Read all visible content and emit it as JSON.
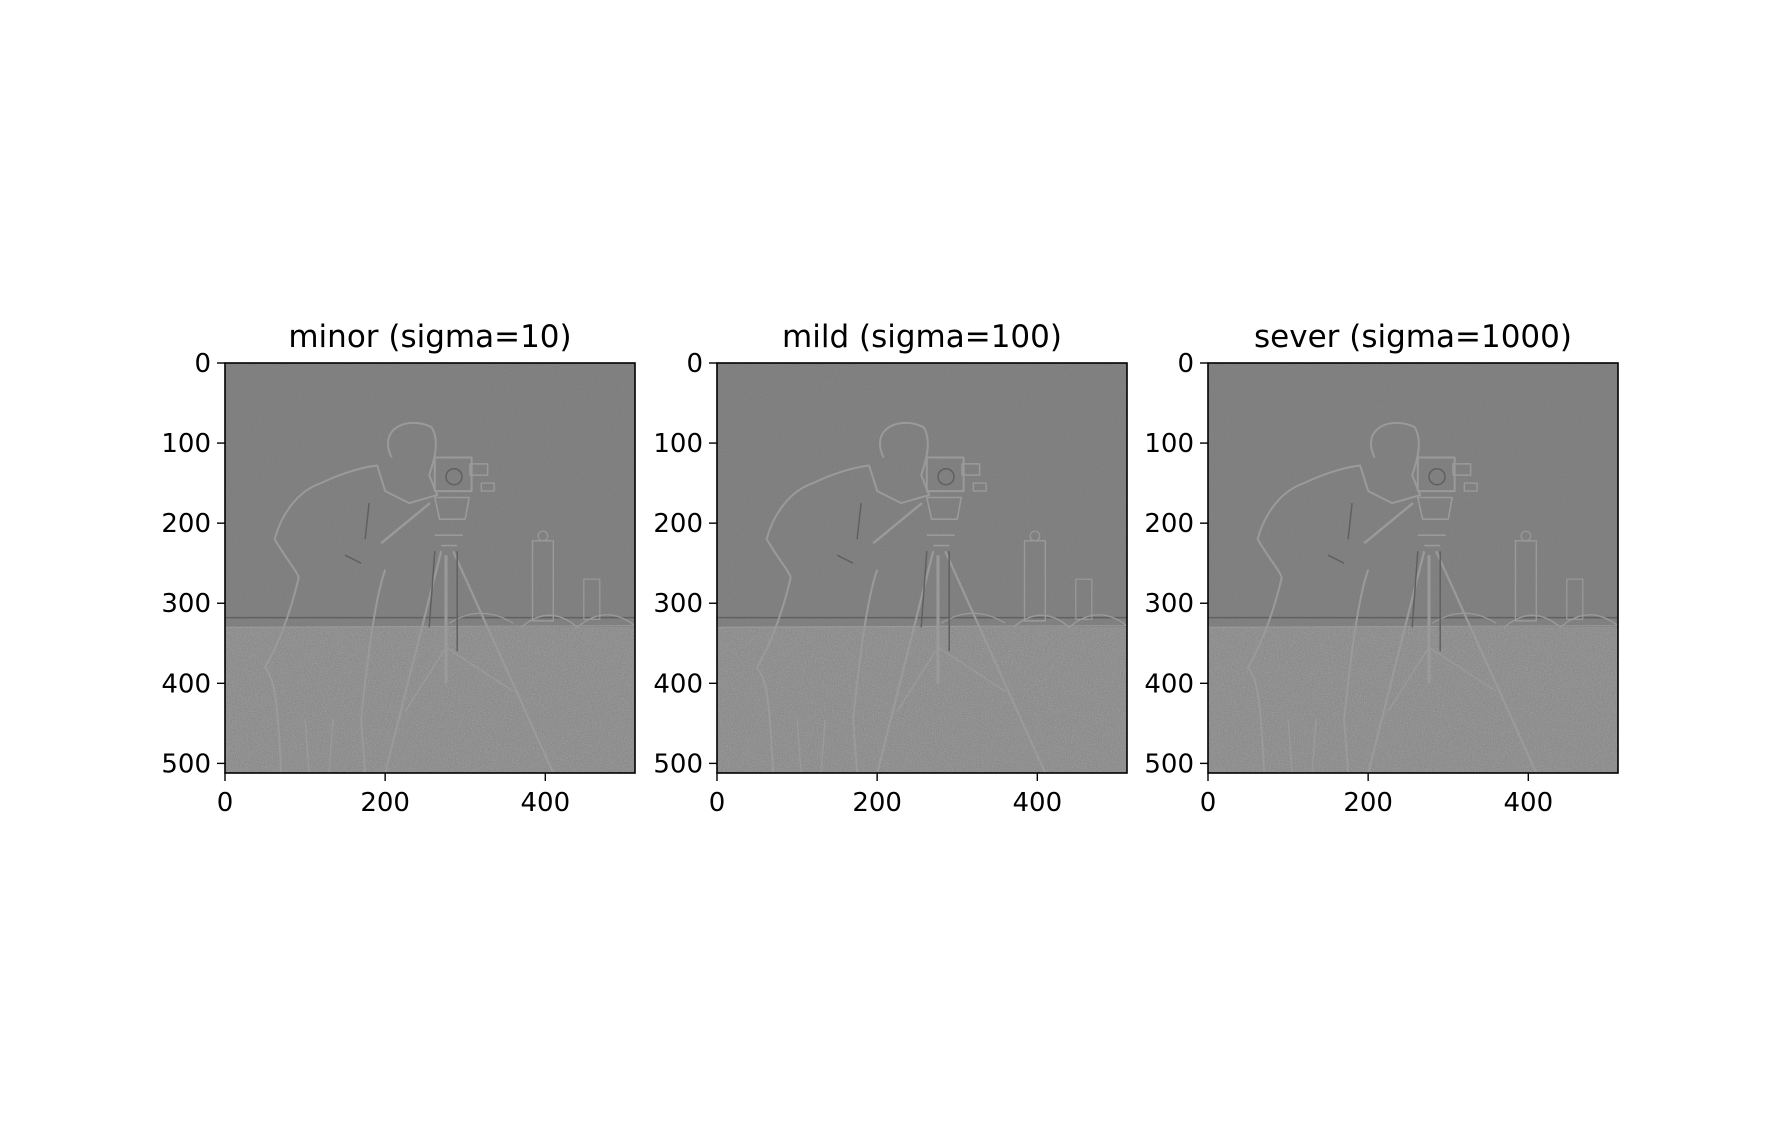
{
  "chart_data": [
    {
      "type": "heatmap",
      "title": "minor (sigma=10)",
      "xlim": [
        0,
        512
      ],
      "ylim": [
        512,
        0
      ],
      "x_ticks": [
        "0",
        "200",
        "400"
      ],
      "y_ticks": [
        "0",
        "100",
        "200",
        "300",
        "400",
        "500"
      ],
      "colormap": "gray"
    },
    {
      "type": "heatmap",
      "title": "mild (sigma=100)",
      "xlim": [
        0,
        512
      ],
      "ylim": [
        512,
        0
      ],
      "x_ticks": [
        "0",
        "200",
        "400"
      ],
      "y_ticks": [
        "0",
        "100",
        "200",
        "300",
        "400",
        "500"
      ],
      "colormap": "gray"
    },
    {
      "type": "heatmap",
      "title": "sever (sigma=1000)",
      "xlim": [
        0,
        512
      ],
      "ylim": [
        512,
        0
      ],
      "x_ticks": [
        "0",
        "200",
        "400"
      ],
      "y_ticks": [
        "0",
        "100",
        "200",
        "300",
        "400",
        "500"
      ],
      "colormap": "gray"
    }
  ],
  "colors": {
    "image_background": "#7c7c7c",
    "edge_light": "#9a9a9a",
    "edge_dark": "#606060",
    "axes": "#000000"
  }
}
